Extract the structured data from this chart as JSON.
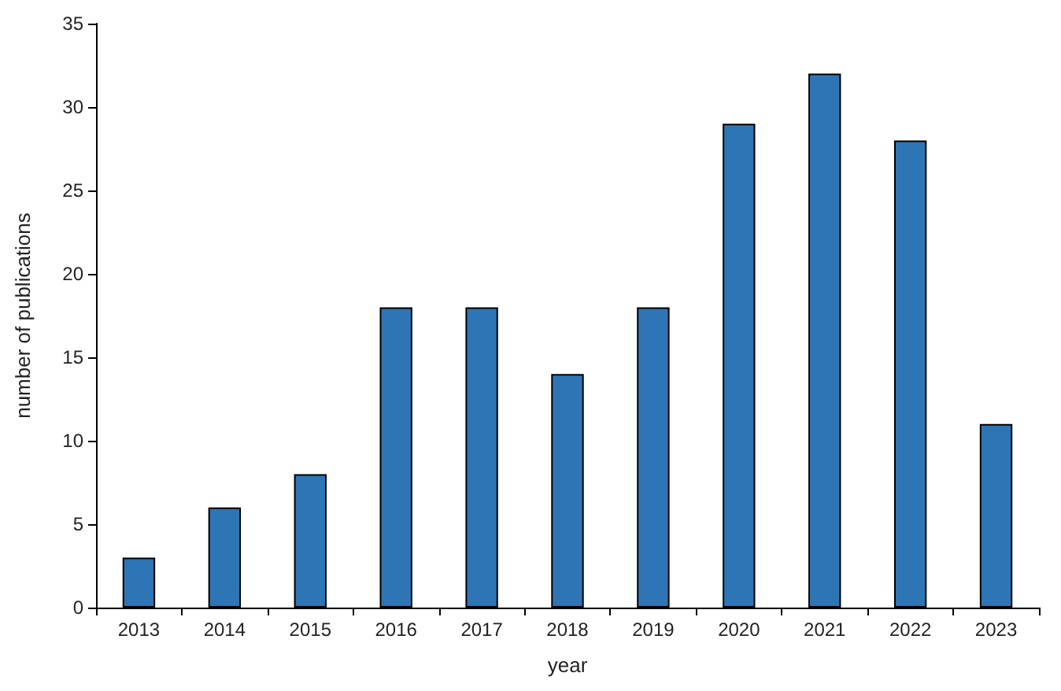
{
  "chart_data": {
    "type": "bar",
    "xlabel": "year",
    "ylabel": "number of publications",
    "categories": [
      "2013",
      "2014",
      "2015",
      "2016",
      "2017",
      "2018",
      "2019",
      "2020",
      "2021",
      "2022",
      "2023"
    ],
    "values": [
      3,
      6,
      8,
      18,
      18,
      14,
      18,
      29,
      32,
      28,
      11
    ],
    "color": "#2e75b6",
    "ylim": [
      0,
      35
    ],
    "yticks": [
      0,
      5,
      10,
      15,
      20,
      25,
      30,
      35
    ],
    "grid": false
  }
}
